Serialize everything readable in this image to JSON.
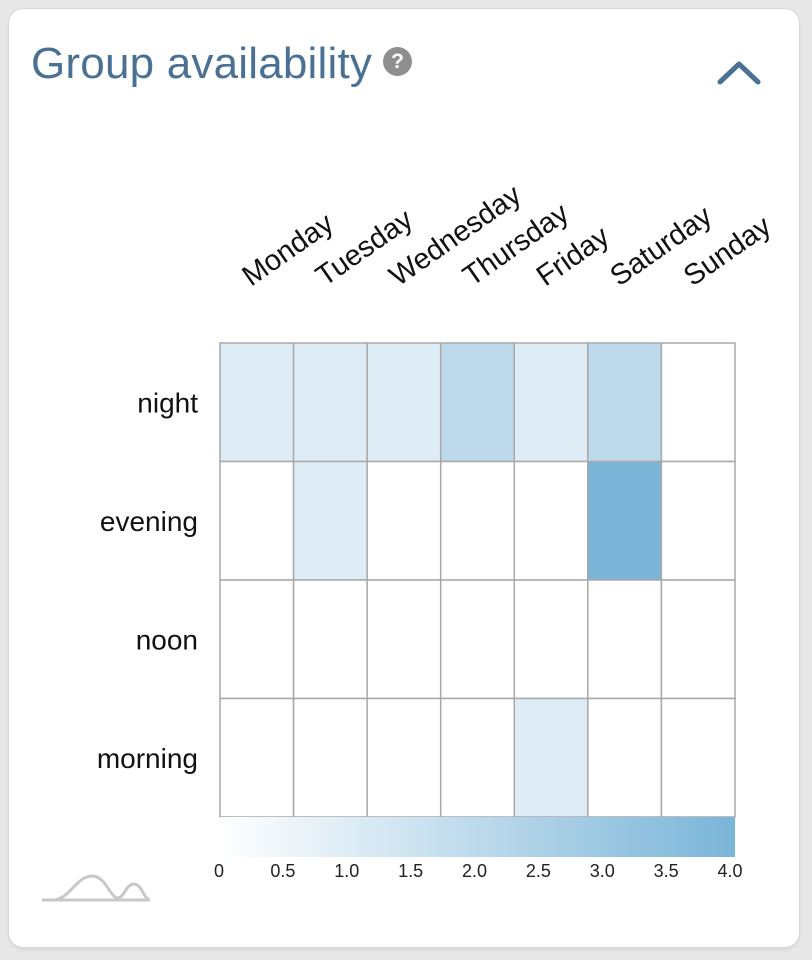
{
  "header": {
    "title": "Group availability",
    "help_glyph": "?"
  },
  "icons": {
    "help": "question-circle-icon",
    "collapse": "chevron-up-icon",
    "footer": "distribution-curve-icon"
  },
  "colors": {
    "title": "#4a7194",
    "cell_max": "#7ab5d8",
    "grid": "#a9a9a9"
  },
  "chart_data": {
    "type": "heatmap",
    "x_categories": [
      "Monday",
      "Tuesday",
      "Wednesday",
      "Thursday",
      "Friday",
      "Saturday",
      "Sunday"
    ],
    "y_categories": [
      "night",
      "evening",
      "noon",
      "morning"
    ],
    "values": [
      [
        1,
        1,
        1,
        2,
        1,
        2,
        0
      ],
      [
        0,
        1,
        0,
        0,
        0,
        4,
        0
      ],
      [
        0,
        0,
        0,
        0,
        0,
        0,
        0
      ],
      [
        0,
        0,
        0,
        0,
        1,
        0,
        0
      ]
    ],
    "color_scale": {
      "min": 0,
      "max": 4.0,
      "ticks": [
        "0",
        "0.5",
        "1.0",
        "1.5",
        "2.0",
        "2.5",
        "3.0",
        "3.5",
        "4.0"
      ],
      "color_min": "#ffffff",
      "color_max": "#7ab5d8"
    },
    "title": "",
    "xlabel": "",
    "ylabel": "",
    "legend_placement": "bottom"
  }
}
